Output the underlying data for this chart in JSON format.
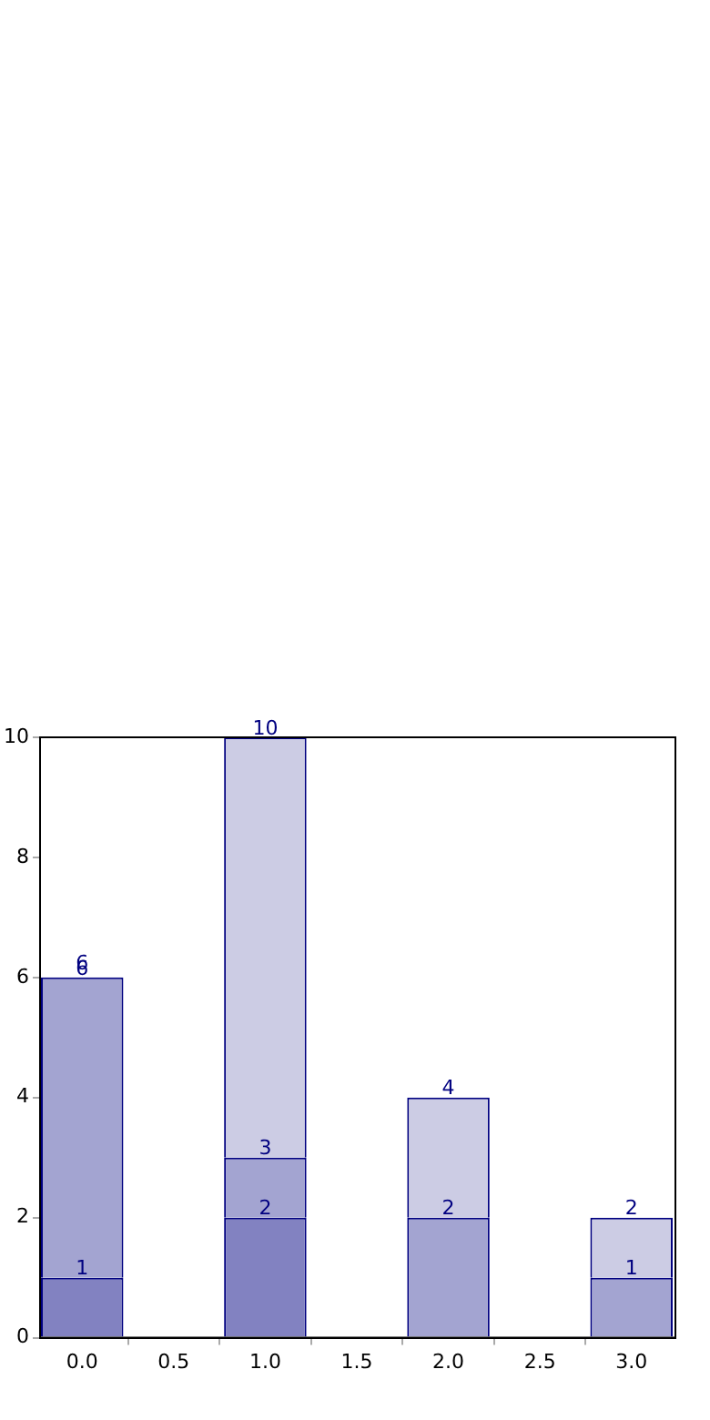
{
  "chart_data": {
    "type": "bar",
    "stacked": true,
    "x": [
      0,
      1,
      2,
      3
    ],
    "series": [
      {
        "color": "#8282c1",
        "values": [
          1,
          2,
          null,
          null
        ]
      },
      {
        "color": "#a3a4d1",
        "values": [
          5,
          1,
          2,
          1
        ]
      },
      {
        "color": "#cccce4",
        "values": [
          0,
          7,
          2,
          1
        ]
      }
    ],
    "annotations": [
      {
        "text": "1",
        "x": 0,
        "y": 1
      },
      {
        "text": "6",
        "x": 0,
        "y": 6
      },
      {
        "text": "6",
        "x": 0,
        "y": 6
      },
      {
        "text": "2",
        "x": 1,
        "y": 2
      },
      {
        "text": "3",
        "x": 1,
        "y": 3
      },
      {
        "text": "10",
        "x": 1,
        "y": 10
      },
      {
        "text": "2",
        "x": 2,
        "y": 2
      },
      {
        "text": "4",
        "x": 2,
        "y": 4
      },
      {
        "text": "1",
        "x": 3,
        "y": 1
      },
      {
        "text": "2",
        "x": 3,
        "y": 2
      }
    ],
    "xlim": [
      -0.23,
      3.24
    ],
    "xticks": [
      {
        "value": 0,
        "label": "0.0"
      },
      {
        "value": 0.5,
        "label": "0.5"
      },
      {
        "value": 1,
        "label": "1.0"
      },
      {
        "value": 1.5,
        "label": "1.5"
      },
      {
        "value": 2,
        "label": "2.0"
      },
      {
        "value": 2.5,
        "label": "2.5"
      },
      {
        "value": 3,
        "label": "3.0"
      }
    ],
    "ylim": [
      0,
      10
    ],
    "yticks": [
      0,
      2,
      4,
      6,
      8,
      10
    ],
    "grid": false,
    "legend": false
  }
}
